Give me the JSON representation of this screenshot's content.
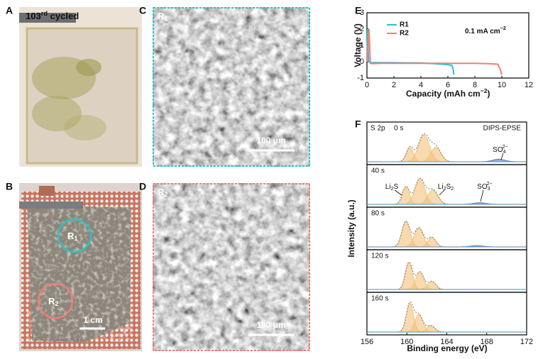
{
  "panels": {
    "A": {
      "letter": "A",
      "caption": {
        "text": "103",
        "sup": "rd",
        "rest": " cycled"
      }
    },
    "B": {
      "letter": "B",
      "regions": [
        {
          "text": "R",
          "sub": "1"
        },
        {
          "text": "R",
          "sub": "2"
        }
      ],
      "scale_bar": "1 cm"
    },
    "C": {
      "letter": "C",
      "region": {
        "text": "R",
        "sub": "1"
      },
      "scale_bar": "100 μm"
    },
    "D": {
      "letter": "D",
      "region": {
        "text": "R",
        "sub": "2"
      },
      "scale_bar": "100 μm"
    }
  },
  "chart_data": [
    {
      "letter": "E",
      "type": "line",
      "xlabel": {
        "text": "Capacity (mAh cm",
        "sup": "−2",
        "rest": ")"
      },
      "ylabel": "Voltage (V)",
      "annotation": {
        "text": "0.1 mA cm",
        "sup": "−2"
      },
      "xlim": [
        0,
        12
      ],
      "xticks": [
        0,
        2,
        4,
        6,
        8,
        10,
        12
      ],
      "ylim": [
        -1,
        3
      ],
      "yticks": [
        -1,
        0,
        1,
        2,
        3
      ],
      "legend": "upper left",
      "series": [
        {
          "name": "R1",
          "color": "#29c0d8",
          "x": [
            0,
            0.05,
            0.12,
            0.3,
            1,
            2,
            3,
            4,
            5,
            6,
            6.3,
            6.4,
            6.45
          ],
          "values": [
            0,
            2,
            0,
            -0.05,
            -0.05,
            -0.06,
            -0.07,
            -0.08,
            -0.12,
            -0.18,
            -0.22,
            -0.5,
            -0.8
          ]
        },
        {
          "name": "R2",
          "color": "#f07f73",
          "x": [
            0,
            0.15,
            0.25,
            0.5,
            1,
            2,
            4,
            6,
            8,
            9,
            9.7,
            9.9,
            10
          ],
          "values": [
            0,
            2,
            -0.1,
            -0.12,
            -0.1,
            -0.1,
            -0.1,
            -0.1,
            -0.1,
            -0.12,
            -0.15,
            -0.5,
            -0.8
          ]
        }
      ]
    },
    {
      "letter": "F",
      "type": "area",
      "title": "S 2p",
      "label": "DIPS-EPSE",
      "xlabel": "Binding energy (eV)",
      "ylabel": "Intensity (a.u.)",
      "xlim": [
        156,
        172
      ],
      "xticks": [
        156,
        160,
        164,
        168,
        172
      ],
      "envelope_color": "#8a8a8a",
      "panels": [
        {
          "name": "0 s",
          "peaks": [
            {
              "center": 160.3,
              "height": 0.45,
              "width": 0.35,
              "color": "#f2c27a"
            },
            {
              "center": 161.7,
              "height": 0.85,
              "width": 0.55,
              "color": "#f2c27a"
            },
            {
              "center": 162.9,
              "height": 0.45,
              "width": 0.5,
              "color": "#f2c27a"
            },
            {
              "center": 169.2,
              "height": 0.08,
              "width": 0.6,
              "color": "#4a7bd0"
            }
          ],
          "annotations": [
            {
              "text": "SO",
              "sub": "4",
              "sup": "2−"
            }
          ]
        },
        {
          "name": "40 s",
          "peaks": [
            {
              "center": 159.9,
              "height": 0.55,
              "width": 0.35,
              "color": "#f2c27a"
            },
            {
              "center": 161.3,
              "height": 0.8,
              "width": 0.5,
              "color": "#f2c27a"
            },
            {
              "center": 162.6,
              "height": 0.45,
              "width": 0.5,
              "color": "#f2c27a"
            },
            {
              "center": 167.3,
              "height": 0.05,
              "width": 0.6,
              "color": "#4a7bd0"
            }
          ],
          "annotations": [
            {
              "text": "Li",
              "sub": "2",
              "rest": "S"
            },
            {
              "text": "Li",
              "sub": "2",
              "rest": "S",
              "sub2": "2"
            },
            {
              "text": "SO",
              "sub": "3",
              "sup": "2−"
            }
          ]
        },
        {
          "name": "80 s",
          "peaks": [
            {
              "center": 159.9,
              "height": 0.8,
              "width": 0.4,
              "color": "#f2c27a"
            },
            {
              "center": 161.2,
              "height": 0.6,
              "width": 0.45,
              "color": "#f2c27a"
            },
            {
              "center": 162.5,
              "height": 0.3,
              "width": 0.4,
              "color": "#f2c27a"
            },
            {
              "center": 167,
              "height": 0.04,
              "width": 0.6,
              "color": "#4a7bd0"
            }
          ],
          "annotations": []
        },
        {
          "name": "120 s",
          "peaks": [
            {
              "center": 160.2,
              "height": 0.85,
              "width": 0.35,
              "color": "#f2c27a"
            },
            {
              "center": 161.3,
              "height": 0.55,
              "width": 0.4,
              "color": "#f2c27a"
            },
            {
              "center": 162.5,
              "height": 0.25,
              "width": 0.4,
              "color": "#f2c27a"
            }
          ],
          "annotations": []
        },
        {
          "name": "160 s",
          "peaks": [
            {
              "center": 160.3,
              "height": 0.9,
              "width": 0.35,
              "color": "#f2c27a"
            },
            {
              "center": 161.2,
              "height": 0.55,
              "width": 0.4,
              "color": "#f2c27a"
            },
            {
              "center": 162.4,
              "height": 0.2,
              "width": 0.4,
              "color": "#f2c27a"
            }
          ],
          "annotations": []
        }
      ]
    }
  ]
}
